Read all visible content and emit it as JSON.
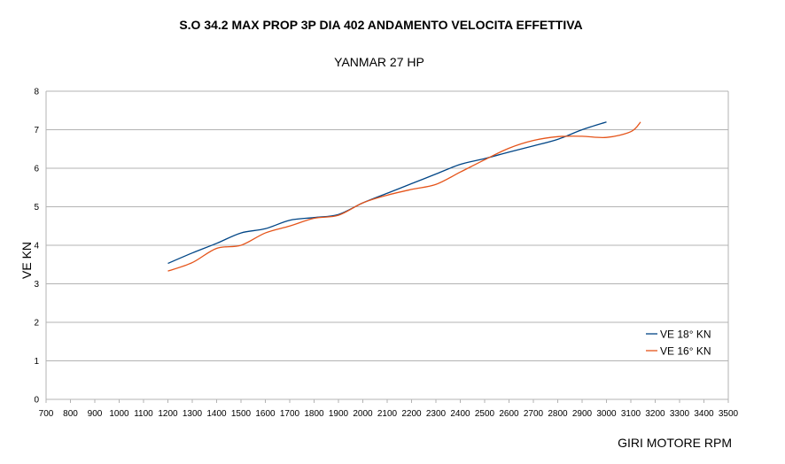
{
  "chart_data": {
    "type": "line",
    "title": "S.O 34.2  MAX PROP 3P DIA 402 ANDAMENTO VELOCITA EFFETTIVA",
    "subtitle": "YANMAR 27 HP",
    "xlabel": "GIRI MOTORE RPM",
    "ylabel": "VE KN",
    "xlim": [
      700,
      3500
    ],
    "ylim": [
      0,
      8
    ],
    "x_ticks": [
      700,
      800,
      900,
      1000,
      1100,
      1200,
      1300,
      1400,
      1500,
      1600,
      1700,
      1800,
      1900,
      2000,
      2100,
      2200,
      2300,
      2400,
      2500,
      2600,
      2700,
      2800,
      2900,
      3000,
      3100,
      3200,
      3300,
      3400,
      3500
    ],
    "y_ticks": [
      0,
      1,
      2,
      3,
      4,
      5,
      6,
      7,
      8
    ],
    "grid": "horizontal",
    "legend_position": "right",
    "series": [
      {
        "name": "VE 18° KN",
        "color": "#004586",
        "x": [
          1200,
          1300,
          1400,
          1500,
          1600,
          1700,
          1800,
          1900,
          2000,
          2100,
          2200,
          2300,
          2400,
          2500,
          2600,
          2700,
          2800,
          2900,
          3000
        ],
        "y": [
          3.53,
          3.8,
          4.05,
          4.32,
          4.43,
          4.65,
          4.72,
          4.8,
          5.1,
          5.35,
          5.6,
          5.85,
          6.1,
          6.25,
          6.42,
          6.58,
          6.75,
          7.0,
          7.2
        ]
      },
      {
        "name": "VE 16° KN",
        "color": "#e5541a",
        "x": [
          1200,
          1300,
          1400,
          1500,
          1600,
          1700,
          1800,
          1900,
          2000,
          2100,
          2200,
          2300,
          2400,
          2500,
          2600,
          2700,
          2800,
          2900,
          3000,
          3100,
          3140
        ],
        "y": [
          3.33,
          3.55,
          3.92,
          4.0,
          4.32,
          4.5,
          4.7,
          4.78,
          5.1,
          5.3,
          5.45,
          5.58,
          5.9,
          6.22,
          6.52,
          6.72,
          6.82,
          6.83,
          6.8,
          6.95,
          7.2
        ]
      }
    ]
  }
}
